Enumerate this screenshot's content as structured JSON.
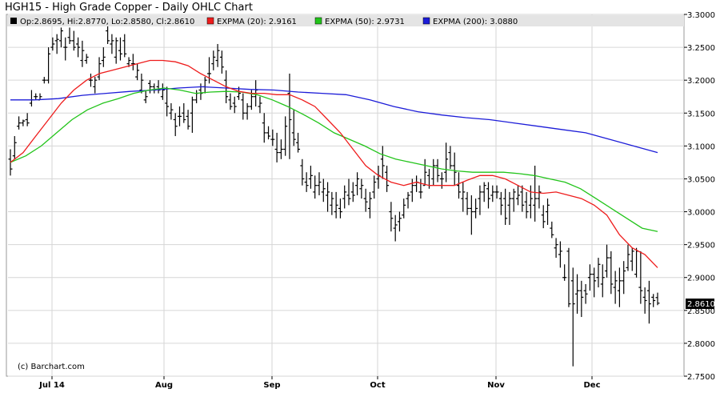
{
  "header": {
    "title": "HGH15 - High Grade Copper - Daily OHLC Chart"
  },
  "legend": {
    "ohlc": "Op:2.8695, Hi:2.8770, Lo:2.8580, Cl:2.8610",
    "ema20": "EXPMA (20): 2.9161",
    "ema50": "EXPMA (50): 2.9731",
    "ema200": "EXPMA (200): 3.0880"
  },
  "watermark": "(c) Barchart.com",
  "last_price_label": "2.8610",
  "colors": {
    "ohlc": "#000000",
    "ema20": "#ee1c1c",
    "ema50": "#22c41a",
    "ema200": "#1c1cd8",
    "legend_bg": "#e4e4e4"
  },
  "chart_data": {
    "type": "ohlc",
    "title": "HGH15 - High Grade Copper - Daily OHLC Chart",
    "ylim": [
      2.75,
      3.3
    ],
    "y_ticks": [
      "3.3000",
      "3.2500",
      "3.2000",
      "3.1500",
      "3.1000",
      "3.0500",
      "3.0000",
      "2.9500",
      "2.9000",
      "2.8500",
      "2.8000",
      "2.7500"
    ],
    "x_labels": [
      "Jul 14",
      "Aug",
      "Sep",
      "Oct",
      "Nov",
      "Dec"
    ],
    "grid": true,
    "bars": [
      [
        3.08,
        3.095,
        3.055,
        3.065
      ],
      [
        3.085,
        3.115,
        3.08,
        3.105
      ],
      [
        3.13,
        3.145,
        3.125,
        3.135
      ],
      [
        3.135,
        3.14,
        3.13,
        3.138
      ],
      [
        3.14,
        3.15,
        3.13,
        3.135
      ],
      [
        3.165,
        3.185,
        3.16,
        3.17
      ],
      [
        3.175,
        3.18,
        3.17,
        3.175
      ],
      [
        3.17,
        3.18,
        3.17,
        3.175
      ],
      [
        3.2,
        3.205,
        3.195,
        3.2
      ],
      [
        3.2,
        3.25,
        3.195,
        3.24
      ],
      [
        3.25,
        3.265,
        3.245,
        3.255
      ],
      [
        3.26,
        3.27,
        3.24,
        3.262
      ],
      [
        3.26,
        3.28,
        3.25,
        3.275
      ],
      [
        3.25,
        3.265,
        3.23,
        3.25
      ],
      [
        3.265,
        3.28,
        3.255,
        3.26
      ],
      [
        3.26,
        3.275,
        3.245,
        3.25
      ],
      [
        3.255,
        3.265,
        3.235,
        3.25
      ],
      [
        3.23,
        3.26,
        3.22,
        3.245
      ],
      [
        3.23,
        3.24,
        3.225,
        3.235
      ],
      [
        3.2,
        3.21,
        3.19,
        3.2
      ],
      [
        3.19,
        3.205,
        3.18,
        3.2
      ],
      [
        3.205,
        3.235,
        3.2,
        3.225
      ],
      [
        3.23,
        3.25,
        3.22,
        3.235
      ],
      [
        3.275,
        3.285,
        3.255,
        3.26
      ],
      [
        3.255,
        3.27,
        3.24,
        3.26
      ],
      [
        3.235,
        3.265,
        3.225,
        3.26
      ],
      [
        3.245,
        3.265,
        3.23,
        3.24
      ],
      [
        3.26,
        3.27,
        3.235,
        3.24
      ],
      [
        3.225,
        3.235,
        3.22,
        3.23
      ],
      [
        3.225,
        3.24,
        3.215,
        3.225
      ],
      [
        3.205,
        3.225,
        3.2,
        3.215
      ],
      [
        3.185,
        3.21,
        3.18,
        3.2
      ],
      [
        3.17,
        3.185,
        3.165,
        3.175
      ],
      [
        3.195,
        3.2,
        3.18,
        3.19
      ],
      [
        3.19,
        3.195,
        3.18,
        3.185
      ],
      [
        3.19,
        3.2,
        3.18,
        3.185
      ],
      [
        3.175,
        3.195,
        3.17,
        3.185
      ],
      [
        3.165,
        3.19,
        3.145,
        3.16
      ],
      [
        3.15,
        3.165,
        3.14,
        3.155
      ],
      [
        3.14,
        3.15,
        3.115,
        3.13
      ],
      [
        3.145,
        3.16,
        3.13,
        3.145
      ],
      [
        3.15,
        3.165,
        3.135,
        3.14
      ],
      [
        3.145,
        3.155,
        3.125,
        3.13
      ],
      [
        3.15,
        3.175,
        3.12,
        3.17
      ],
      [
        3.17,
        3.185,
        3.165,
        3.18
      ],
      [
        3.185,
        3.195,
        3.17,
        3.18
      ],
      [
        3.19,
        3.205,
        3.18,
        3.2
      ],
      [
        3.21,
        3.235,
        3.195,
        3.21
      ],
      [
        3.225,
        3.245,
        3.215,
        3.235
      ],
      [
        3.23,
        3.255,
        3.22,
        3.245
      ],
      [
        3.235,
        3.245,
        3.21,
        3.22
      ],
      [
        3.2,
        3.215,
        3.165,
        3.175
      ],
      [
        3.17,
        3.18,
        3.155,
        3.16
      ],
      [
        3.165,
        3.175,
        3.15,
        3.16
      ],
      [
        3.175,
        3.19,
        3.17,
        3.18
      ],
      [
        3.17,
        3.18,
        3.14,
        3.15
      ],
      [
        3.15,
        3.165,
        3.14,
        3.16
      ],
      [
        3.16,
        3.185,
        3.155,
        3.175
      ],
      [
        3.175,
        3.2,
        3.16,
        3.185
      ],
      [
        3.16,
        3.175,
        3.15,
        3.165
      ],
      [
        3.135,
        3.15,
        3.105,
        3.12
      ],
      [
        3.12,
        3.13,
        3.11,
        3.115
      ],
      [
        3.11,
        3.125,
        3.1,
        3.11
      ],
      [
        3.095,
        3.12,
        3.075,
        3.09
      ],
      [
        3.09,
        3.11,
        3.08,
        3.095
      ],
      [
        3.095,
        3.145,
        3.085,
        3.13
      ],
      [
        3.18,
        3.21,
        3.08,
        3.14
      ],
      [
        3.12,
        3.155,
        3.1,
        3.11
      ],
      [
        3.105,
        3.12,
        3.09,
        3.095
      ],
      [
        3.07,
        3.08,
        3.04,
        3.05
      ],
      [
        3.045,
        3.06,
        3.03,
        3.04
      ],
      [
        3.05,
        3.07,
        3.035,
        3.055
      ],
      [
        3.03,
        3.055,
        3.02,
        3.04
      ],
      [
        3.04,
        3.06,
        3.025,
        3.045
      ],
      [
        3.03,
        3.05,
        3.015,
        3.035
      ],
      [
        3.025,
        3.045,
        3.0,
        3.03
      ],
      [
        3.01,
        3.03,
        2.995,
        3.02
      ],
      [
        3.0,
        3.03,
        2.99,
        3.01
      ],
      [
        3.005,
        3.02,
        2.99,
        3.0
      ],
      [
        3.02,
        3.04,
        3.005,
        3.03
      ],
      [
        3.025,
        3.05,
        3.01,
        3.02
      ],
      [
        3.03,
        3.045,
        3.015,
        3.025
      ],
      [
        3.04,
        3.06,
        3.025,
        3.05
      ],
      [
        3.035,
        3.05,
        3.02,
        3.04
      ],
      [
        3.02,
        3.035,
        3.0,
        3.015
      ],
      [
        3.005,
        3.03,
        2.99,
        3.02
      ],
      [
        3.03,
        3.055,
        3.02,
        3.045
      ],
      [
        3.05,
        3.07,
        3.035,
        3.055
      ],
      [
        3.08,
        3.1,
        3.05,
        3.07
      ],
      [
        3.06,
        3.07,
        3.03,
        3.04
      ],
      [
        3.0,
        3.015,
        2.97,
        2.99
      ],
      [
        2.975,
        2.995,
        2.955,
        2.98
      ],
      [
        2.985,
        3.0,
        2.97,
        2.99
      ],
      [
        2.995,
        3.02,
        2.99,
        3.01
      ],
      [
        3.02,
        3.03,
        3.005,
        3.025
      ],
      [
        3.03,
        3.05,
        3.015,
        3.04
      ],
      [
        3.04,
        3.055,
        3.03,
        3.045
      ],
      [
        3.03,
        3.05,
        3.02,
        3.03
      ],
      [
        3.04,
        3.08,
        3.04,
        3.06
      ],
      [
        3.055,
        3.065,
        3.035,
        3.04
      ],
      [
        3.05,
        3.08,
        3.04,
        3.07
      ],
      [
        3.07,
        3.08,
        3.045,
        3.055
      ],
      [
        3.05,
        3.06,
        3.035,
        3.05
      ],
      [
        3.06,
        3.105,
        3.045,
        3.08
      ],
      [
        3.09,
        3.1,
        3.065,
        3.07
      ],
      [
        3.07,
        3.09,
        3.04,
        3.06
      ],
      [
        3.04,
        3.06,
        3.02,
        3.03
      ],
      [
        3.02,
        3.045,
        3.0,
        3.03
      ],
      [
        3.02,
        3.03,
        2.995,
        3.005
      ],
      [
        3.005,
        3.025,
        2.965,
        3.0
      ],
      [
        3.0,
        3.02,
        2.99,
        3.005
      ],
      [
        3.02,
        3.04,
        2.995,
        3.03
      ],
      [
        3.03,
        3.045,
        3.015,
        3.04
      ],
      [
        3.035,
        3.045,
        3.005,
        3.02
      ],
      [
        3.025,
        3.04,
        3.015,
        3.03
      ],
      [
        3.03,
        3.04,
        3.02,
        3.03
      ],
      [
        3.02,
        3.03,
        2.995,
        3.01
      ],
      [
        3.02,
        3.035,
        2.98,
        2.99
      ],
      [
        3.01,
        3.03,
        2.98,
        3.02
      ],
      [
        3.02,
        3.035,
        3.0,
        3.03
      ],
      [
        3.02,
        3.04,
        3.01,
        3.025
      ],
      [
        3.03,
        3.04,
        3.0,
        3.01
      ],
      [
        3.015,
        3.03,
        2.99,
        3.0
      ],
      [
        3.01,
        3.04,
        2.99,
        3.02
      ],
      [
        3.01,
        3.07,
        2.985,
        3.02
      ],
      [
        3.02,
        3.04,
        3.005,
        3.03
      ],
      [
        2.995,
        3.01,
        2.975,
        2.985
      ],
      [
        3.0,
        3.02,
        2.98,
        3.01
      ],
      [
        2.975,
        2.985,
        2.96,
        2.965
      ],
      [
        2.945,
        2.96,
        2.93,
        2.95
      ],
      [
        2.935,
        2.955,
        2.915,
        2.94
      ],
      [
        2.9,
        2.92,
        2.895,
        2.9
      ],
      [
        2.94,
        2.945,
        2.855,
        2.86
      ],
      [
        2.895,
        2.915,
        2.765,
        2.86
      ],
      [
        2.875,
        2.905,
        2.845,
        2.88
      ],
      [
        2.88,
        2.895,
        2.84,
        2.87
      ],
      [
        2.88,
        2.89,
        2.86,
        2.875
      ],
      [
        2.9,
        2.92,
        2.88,
        2.905
      ],
      [
        2.905,
        2.915,
        2.87,
        2.895
      ],
      [
        2.9,
        2.93,
        2.885,
        2.92
      ],
      [
        2.89,
        2.92,
        2.87,
        2.9
      ],
      [
        2.91,
        2.95,
        2.9,
        2.93
      ],
      [
        2.93,
        2.94,
        2.875,
        2.89
      ],
      [
        2.885,
        2.91,
        2.86,
        2.895
      ],
      [
        2.88,
        2.915,
        2.855,
        2.895
      ],
      [
        2.895,
        2.925,
        2.875,
        2.91
      ],
      [
        2.915,
        2.95,
        2.91,
        2.935
      ],
      [
        2.925,
        2.945,
        2.91,
        2.94
      ],
      [
        2.905,
        2.945,
        2.9,
        2.94
      ],
      [
        2.885,
        2.94,
        2.86,
        2.88
      ],
      [
        2.87,
        2.885,
        2.845,
        2.865
      ],
      [
        2.88,
        2.895,
        2.83,
        2.86
      ],
      [
        2.87,
        2.875,
        2.855,
        2.865
      ],
      [
        2.8695,
        2.877,
        2.858,
        2.861
      ]
    ],
    "ema20": [
      3.075,
      3.09,
      3.115,
      3.14,
      3.165,
      3.185,
      3.2,
      3.21,
      3.215,
      3.22,
      3.225,
      3.23,
      3.23,
      3.228,
      3.222,
      3.21,
      3.2,
      3.19,
      3.183,
      3.18,
      3.18,
      3.178,
      3.178,
      3.17,
      3.16,
      3.14,
      3.12,
      3.095,
      3.07,
      3.055,
      3.045,
      3.04,
      3.045,
      3.04,
      3.04,
      3.04,
      3.048,
      3.055,
      3.055,
      3.05,
      3.04,
      3.03,
      3.028,
      3.03,
      3.025,
      3.02,
      3.01,
      2.995,
      2.965,
      2.945,
      2.935,
      2.915
    ],
    "ema50": [
      3.075,
      3.085,
      3.1,
      3.12,
      3.14,
      3.155,
      3.165,
      3.172,
      3.18,
      3.185,
      3.188,
      3.185,
      3.18,
      3.182,
      3.183,
      3.182,
      3.178,
      3.17,
      3.16,
      3.148,
      3.135,
      3.12,
      3.11,
      3.1,
      3.088,
      3.08,
      3.075,
      3.07,
      3.065,
      3.062,
      3.06,
      3.06,
      3.06,
      3.058,
      3.055,
      3.05,
      3.045,
      3.035,
      3.02,
      3.005,
      2.99,
      2.975,
      2.97
    ],
    "ema200": [
      3.17,
      3.17,
      3.172,
      3.177,
      3.18,
      3.183,
      3.185,
      3.188,
      3.19,
      3.188,
      3.186,
      3.185,
      3.182,
      3.18,
      3.178,
      3.17,
      3.16,
      3.152,
      3.147,
      3.143,
      3.14,
      3.135,
      3.13,
      3.125,
      3.12,
      3.11,
      3.1,
      3.09
    ]
  }
}
